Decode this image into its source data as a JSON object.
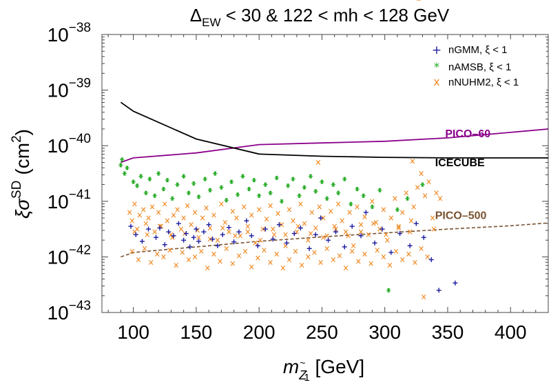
{
  "chart_data": {
    "type": "scatter",
    "title": "Δ_EW < 30 & 122 < mh < 128 GeV",
    "title_parts": {
      "delta": "Δ",
      "sub": "EW",
      "rest": " < 30 & 122 < mh < 128 GeV"
    },
    "xlabel": {
      "m": "m",
      "sub_z": "Z",
      "tilde": "~",
      "sub_1": "1",
      "unit": " [GeV]"
    },
    "ylabel": {
      "xi": "ξ",
      "sigma": "σ",
      "sup": "SD",
      "unit": "(cm",
      "sq": "2",
      "close": ")"
    },
    "xlim": [
      75,
      430
    ],
    "ylim_exp": [
      -43,
      -38
    ],
    "y_scale": "log",
    "x_ticks": [
      100,
      150,
      200,
      250,
      300,
      350,
      400
    ],
    "x_tick_labels": [
      "100",
      "150",
      "200",
      "250",
      "300",
      "350",
      "400"
    ],
    "y_ticks": [
      {
        "base": "10",
        "exp": "−43",
        "value": -43
      },
      {
        "base": "10",
        "exp": "−42",
        "value": -42
      },
      {
        "base": "10",
        "exp": "−41",
        "value": -41
      },
      {
        "base": "10",
        "exp": "−40",
        "value": -40
      },
      {
        "base": "10",
        "exp": "−39",
        "value": -39
      },
      {
        "base": "10",
        "exp": "−38",
        "value": -38
      }
    ],
    "legend": {
      "placement": "top-right",
      "entries": [
        {
          "marker": "+",
          "label": "nGMM, ξ < 1",
          "color": "#1a1aa0"
        },
        {
          "marker": "*",
          "label": "nAMSB, ξ < 1",
          "color": "#22aa22"
        },
        {
          "marker": "x",
          "label": "nNUHM2, ξ < 1",
          "color": "#f08c28"
        }
      ]
    },
    "curves": [
      {
        "name": "PICO–60",
        "color": "#8b008b",
        "dash": false,
        "x": [
          90,
          100,
          150,
          200,
          250,
          300,
          350,
          400,
          430
        ],
        "logy": [
          -40.3,
          -40.22,
          -40.13,
          -39.98,
          -39.95,
          -39.92,
          -39.86,
          -39.76,
          -39.7
        ]
      },
      {
        "name": "ICECUBE",
        "color": "#000000",
        "dash": false,
        "x": [
          90,
          100,
          150,
          200,
          250,
          300,
          350,
          400,
          430
        ],
        "logy": [
          -39.22,
          -39.38,
          -39.88,
          -40.15,
          -40.19,
          -40.21,
          -40.22,
          -40.22,
          -40.22
        ]
      },
      {
        "name": "PICO–500",
        "color": "#7a5230",
        "dash": true,
        "x": [
          90,
          100,
          150,
          200,
          250,
          300,
          350,
          400,
          430
        ],
        "logy": [
          -42.0,
          -41.92,
          -41.82,
          -41.72,
          -41.64,
          -41.57,
          -41.5,
          -41.44,
          -41.39
        ]
      }
    ],
    "curve_labels": [
      {
        "text": "PICO–60",
        "color": "#8b008b",
        "x": 348,
        "logy": -39.85
      },
      {
        "text": "ICECUBE",
        "color": "#000000",
        "x": 340,
        "logy": -40.37
      },
      {
        "text": "PICO–500",
        "color": "#7a5230",
        "x": 340,
        "logy": -41.32
      }
    ],
    "series": [
      {
        "name": "nGMM, ξ < 1",
        "marker": "+",
        "color": "#1a1aa0",
        "x": [
          98,
          102,
          107,
          112,
          118,
          121,
          125,
          128,
          132,
          136,
          140,
          142,
          145,
          148,
          150,
          152,
          156,
          160,
          163,
          167,
          171,
          176,
          180,
          184,
          190,
          194,
          199,
          205,
          211,
          216,
          222,
          228,
          233,
          240,
          245,
          249,
          255,
          261,
          268,
          274,
          281,
          285,
          292,
          298,
          305,
          312,
          320,
          325,
          331,
          337,
          343,
          356
        ],
        "logy": [
          -41.45,
          -41.6,
          -41.72,
          -41.5,
          -41.65,
          -41.48,
          -41.78,
          -41.55,
          -41.62,
          -41.4,
          -41.7,
          -41.58,
          -41.82,
          -41.65,
          -41.5,
          -41.72,
          -41.55,
          -41.42,
          -41.68,
          -41.8,
          -41.6,
          -41.47,
          -41.73,
          -41.55,
          -41.35,
          -41.62,
          -41.8,
          -41.5,
          -41.68,
          -41.42,
          -41.75,
          -41.58,
          -41.48,
          -41.85,
          -41.6,
          -41.3,
          -41.7,
          -41.55,
          -41.82,
          -41.45,
          -41.62,
          -41.2,
          -41.75,
          -41.5,
          -41.92,
          -41.58,
          -41.8,
          -41.4,
          -41.65,
          -42.05,
          -42.6,
          -42.47
        ]
      },
      {
        "name": "nAMSB, ξ < 1",
        "marker": "*",
        "color": "#22aa22",
        "x": [
          90,
          91,
          93,
          95,
          100,
          103,
          106,
          110,
          113,
          117,
          120,
          124,
          127,
          131,
          135,
          140,
          144,
          148,
          152,
          157,
          161,
          165,
          170,
          174,
          178,
          183,
          187,
          192,
          196,
          200,
          205,
          209,
          214,
          218,
          223,
          227,
          232,
          236,
          241,
          245,
          250,
          254,
          259,
          263,
          268,
          273,
          278,
          283,
          290,
          296,
          303,
          310,
          318,
          330
        ],
        "logy": [
          -40.35,
          -40.25,
          -40.5,
          -40.4,
          -40.65,
          -40.72,
          -40.55,
          -40.85,
          -40.6,
          -40.9,
          -40.5,
          -40.78,
          -40.62,
          -40.95,
          -40.7,
          -40.55,
          -40.85,
          -40.68,
          -40.92,
          -40.6,
          -40.8,
          -40.5,
          -40.75,
          -40.98,
          -40.65,
          -40.88,
          -40.55,
          -40.78,
          -40.62,
          -40.9,
          -40.7,
          -40.85,
          -40.58,
          -41.0,
          -40.72,
          -40.6,
          -40.9,
          -40.75,
          -40.55,
          -40.82,
          -40.65,
          -40.95,
          -40.7,
          -40.85,
          -40.6,
          -41.05,
          -40.78,
          -40.9,
          -41.1,
          -40.8,
          -42.6,
          -41.15,
          -40.95,
          -40.7
        ]
      },
      {
        "name": "nNUHM2, ξ < 1",
        "marker": "x",
        "color": "#f08c28",
        "x": [
          97,
          99,
          101,
          103,
          105,
          108,
          110,
          112,
          115,
          117,
          120,
          122,
          125,
          127,
          130,
          132,
          135,
          138,
          140,
          143,
          146,
          149,
          152,
          155,
          158,
          161,
          164,
          167,
          170,
          173,
          176,
          179,
          182,
          185,
          188,
          191,
          194,
          197,
          200,
          203,
          206,
          209,
          212,
          215,
          218,
          221,
          224,
          227,
          230,
          233,
          236,
          239,
          242,
          245,
          248,
          251,
          254,
          257,
          260,
          263,
          266,
          269,
          272,
          275,
          278,
          281,
          284,
          287,
          290,
          293,
          296,
          299,
          302,
          305,
          308,
          311,
          314,
          317,
          320,
          323,
          326,
          329,
          332,
          335,
          338,
          341,
          344,
          99,
          104,
          109,
          114,
          119,
          124,
          129,
          134,
          139,
          144,
          149,
          154,
          159,
          164,
          169,
          174,
          179,
          184,
          189,
          194,
          199,
          204,
          209,
          214,
          219,
          224,
          229,
          234,
          239,
          244,
          249,
          254,
          259,
          264,
          269,
          274,
          279,
          284,
          289,
          294,
          299,
          304,
          309,
          314,
          319,
          324,
          329,
          334,
          339,
          101,
          111,
          121,
          131,
          141,
          151,
          161,
          171,
          181,
          191,
          201,
          211,
          221,
          231,
          241,
          251,
          261,
          271,
          281,
          291,
          301,
          311,
          321,
          331,
          247,
          322,
          327
        ],
        "logy": [
          -41.2,
          -41.35,
          -41.05,
          -41.5,
          -41.25,
          -41.15,
          -41.4,
          -41.3,
          -41.1,
          -41.55,
          -41.2,
          -41.45,
          -41.05,
          -41.35,
          -41.6,
          -41.25,
          -41.15,
          -41.5,
          -41.3,
          -41.08,
          -41.42,
          -41.2,
          -41.65,
          -41.3,
          -41.12,
          -41.48,
          -41.25,
          -41.7,
          -41.05,
          -41.38,
          -41.55,
          -41.18,
          -41.3,
          -41.62,
          -41.1,
          -41.45,
          -41.25,
          -41.75,
          -41.15,
          -41.5,
          -41.32,
          -41.08,
          -41.6,
          -41.22,
          -41.42,
          -41.8,
          -41.15,
          -41.35,
          -41.55,
          -41.05,
          -41.4,
          -41.7,
          -41.2,
          -41.48,
          -41.1,
          -41.3,
          -41.62,
          -41.18,
          -41.45,
          -41.05,
          -41.35,
          -41.55,
          -41.2,
          -41.8,
          -41.1,
          -41.42,
          -41.28,
          -41.6,
          -41.0,
          -41.38,
          -41.5,
          -41.15,
          -41.7,
          -41.3,
          -40.95,
          -41.45,
          -41.2,
          -40.85,
          -41.55,
          -41.1,
          -40.75,
          -40.5,
          -40.9,
          -40.65,
          -41.3,
          -40.85,
          -40.95,
          -41.9,
          -42.05,
          -41.85,
          -42.1,
          -41.95,
          -42.0,
          -41.88,
          -42.15,
          -41.92,
          -42.05,
          -42.0,
          -41.9,
          -42.2,
          -41.95,
          -42.08,
          -41.85,
          -42.12,
          -41.98,
          -41.9,
          -42.18,
          -42.02,
          -41.88,
          -42.1,
          -41.95,
          -42.2,
          -42.05,
          -41.9,
          -42.15,
          -42.0,
          -41.92,
          -42.1,
          -41.85,
          -42.05,
          -41.98,
          -42.2,
          -41.9,
          -42.08,
          -41.95,
          -42.12,
          -41.88,
          -42.0,
          -42.15,
          -41.9,
          -42.05,
          -41.95,
          -42.1,
          -41.85,
          -42.0,
          -41.5,
          -41.55,
          -41.6,
          -41.45,
          -41.65,
          -41.58,
          -41.52,
          -41.68,
          -41.48,
          -41.62,
          -41.55,
          -41.7,
          -41.5,
          -41.6,
          -41.45,
          -41.58,
          -41.65,
          -41.5,
          -41.62,
          -41.55,
          -41.4,
          -41.6,
          -41.48,
          -41.35,
          -42.72,
          -40.3,
          -40.28
        ]
      }
    ]
  }
}
